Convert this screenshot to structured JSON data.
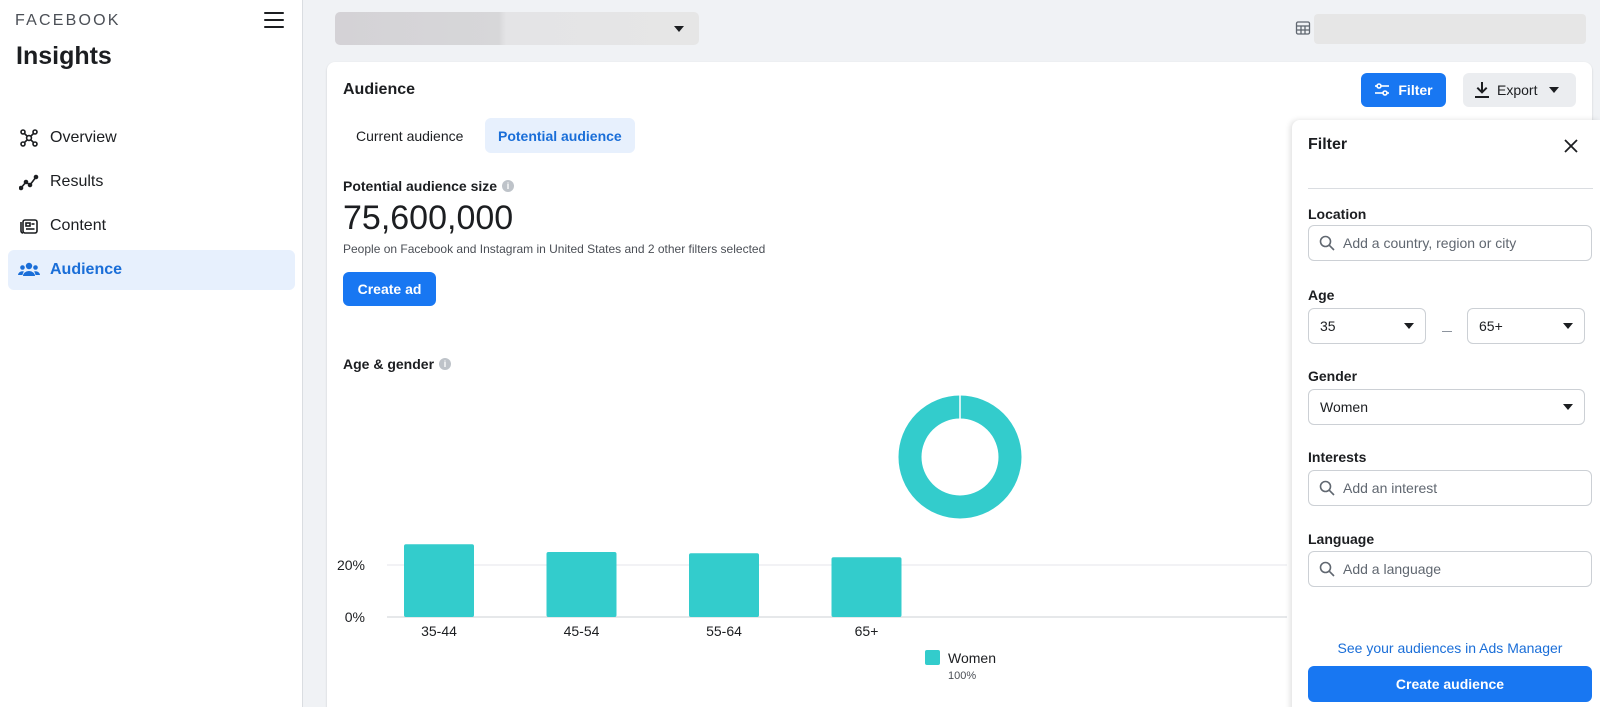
{
  "sidebar": {
    "brand": "FACEBOOK",
    "app_title": "Insights",
    "items": [
      {
        "label": "Overview",
        "icon": "network-icon"
      },
      {
        "label": "Results",
        "icon": "trend-icon"
      },
      {
        "label": "Content",
        "icon": "content-icon"
      },
      {
        "label": "Audience",
        "icon": "people-icon",
        "active": true
      }
    ]
  },
  "card": {
    "title": "Audience",
    "filter_label": "Filter",
    "export_label": "Export",
    "tabs": [
      {
        "label": "Current audience",
        "active": false
      },
      {
        "label": "Potential audience",
        "active": true
      }
    ],
    "size_label": "Potential audience size",
    "size_value": "75,600,000",
    "size_description": "People on Facebook and Instagram in United States and 2 other filters selected",
    "create_ad_label": "Create ad",
    "age_gender_label": "Age & gender"
  },
  "chart_data": {
    "type": "bar",
    "title": "Age & gender",
    "categories": [
      "35-44",
      "45-54",
      "55-64",
      "65+"
    ],
    "series": [
      {
        "name": "Women",
        "values": [
          28,
          25,
          24.5,
          23
        ]
      }
    ],
    "ytick_labels": [
      "0%",
      "20%"
    ],
    "ylim": [
      0,
      30
    ],
    "legend": {
      "name": "Women",
      "share": "100%",
      "placement": "bottom"
    },
    "donut": [
      {
        "name": "Women",
        "value": 100
      }
    ],
    "colors": {
      "women": "#33cccc"
    }
  },
  "filter_panel": {
    "title": "Filter",
    "location_label": "Location",
    "location_placeholder": "Add a country, region or city",
    "age_label": "Age",
    "age_min": "35",
    "age_max": "65+",
    "gender_label": "Gender",
    "gender_value": "Women",
    "interests_label": "Interests",
    "interests_placeholder": "Add an interest",
    "language_label": "Language",
    "language_placeholder": "Add a language",
    "ads_manager_link": "See your audiences in Ads Manager",
    "create_audience_label": "Create audience"
  },
  "colors": {
    "accent": "#1877f2",
    "chart": "#33cccc",
    "active_bg": "#e7f0fd"
  }
}
